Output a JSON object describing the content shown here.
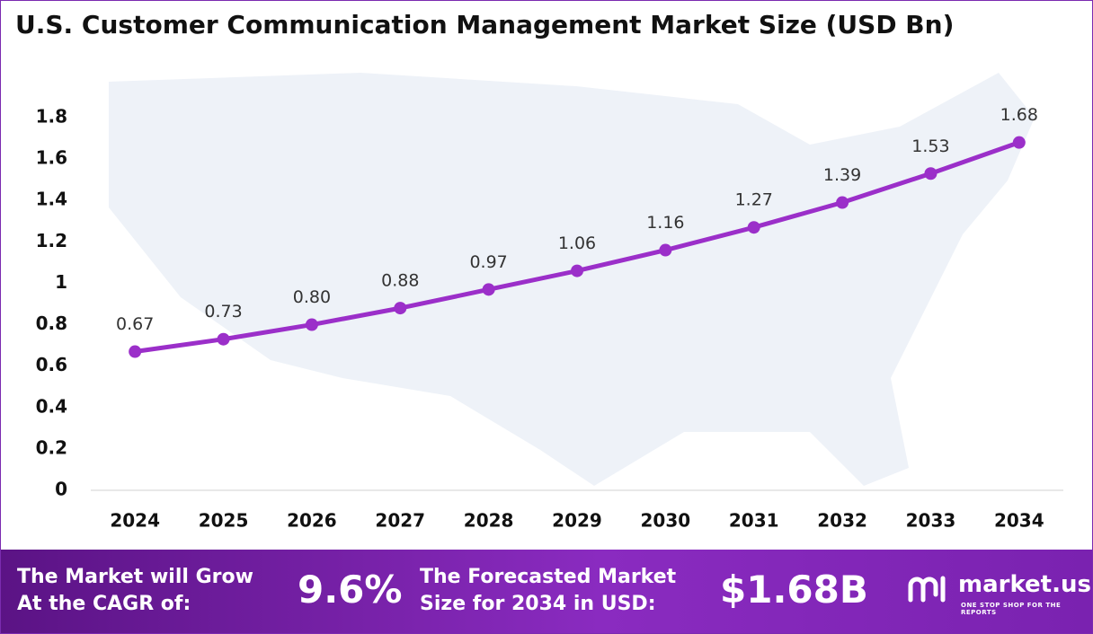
{
  "chart_data": {
    "type": "line",
    "title": "U.S. Customer Communication Management Market Size (USD Bn)",
    "categories": [
      "2024",
      "2025",
      "2026",
      "2027",
      "2028",
      "2029",
      "2030",
      "2031",
      "2032",
      "2033",
      "2034"
    ],
    "values": [
      0.67,
      0.73,
      0.8,
      0.88,
      0.97,
      1.06,
      1.16,
      1.27,
      1.39,
      1.53,
      1.68
    ],
    "value_labels": [
      "0.67",
      "0.73",
      "0.80",
      "0.88",
      "0.97",
      "1.06",
      "1.16",
      "1.27",
      "1.39",
      "1.53",
      "1.68"
    ],
    "color": "#9b2fc9",
    "ylim": [
      0,
      1.8
    ],
    "yticks": [
      0,
      0.2,
      0.4,
      0.6,
      0.8,
      1,
      1.2,
      1.4,
      1.6,
      1.8
    ]
  },
  "footer": {
    "cagr_text": "The Market will Grow At the CAGR of:",
    "cagr_value": "9.6%",
    "forecast_text": "The Forecasted Market Size for 2034 in USD:",
    "forecast_value": "$1.68B",
    "brand": "market.us",
    "tagline": "ONE STOP SHOP FOR THE REPORTS"
  }
}
